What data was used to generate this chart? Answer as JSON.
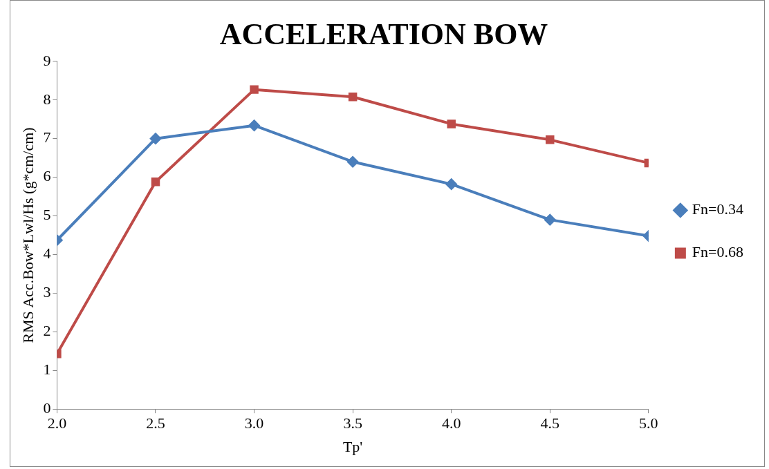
{
  "chart_data": {
    "type": "line",
    "title": "ACCELERATION BOW",
    "xlabel": "Tp'",
    "ylabel": "RMS Acc.Bow*Lwl/Hs (g*cm/cm)",
    "x": [
      2.0,
      2.5,
      3.0,
      3.5,
      4.0,
      4.5,
      5.0
    ],
    "xlim": [
      2,
      5
    ],
    "xticks": [
      {
        "value": 2,
        "label": "2.0"
      },
      {
        "value": 2.5,
        "label": "2.5"
      },
      {
        "value": 3,
        "label": "3.0"
      },
      {
        "value": 3.5,
        "label": "3.5"
      },
      {
        "value": 4,
        "label": "4.0"
      },
      {
        "value": 4.5,
        "label": "4.5"
      },
      {
        "value": 5,
        "label": "5.0"
      }
    ],
    "ylim": [
      0,
      9
    ],
    "yticks": [
      0,
      1,
      2,
      3,
      4,
      5,
      6,
      7,
      8,
      9
    ],
    "grid": false,
    "legend": "right",
    "series": [
      {
        "name": "Fn=0.34",
        "color": "#4a7ebb",
        "marker": "diamond",
        "values": [
          4.37,
          7.0,
          7.34,
          6.4,
          5.82,
          4.9,
          4.48
        ]
      },
      {
        "name": "Fn=0.68",
        "color": "#be4b48",
        "marker": "square",
        "values": [
          1.43,
          5.88,
          8.27,
          8.08,
          7.38,
          6.97,
          6.37
        ]
      }
    ]
  }
}
